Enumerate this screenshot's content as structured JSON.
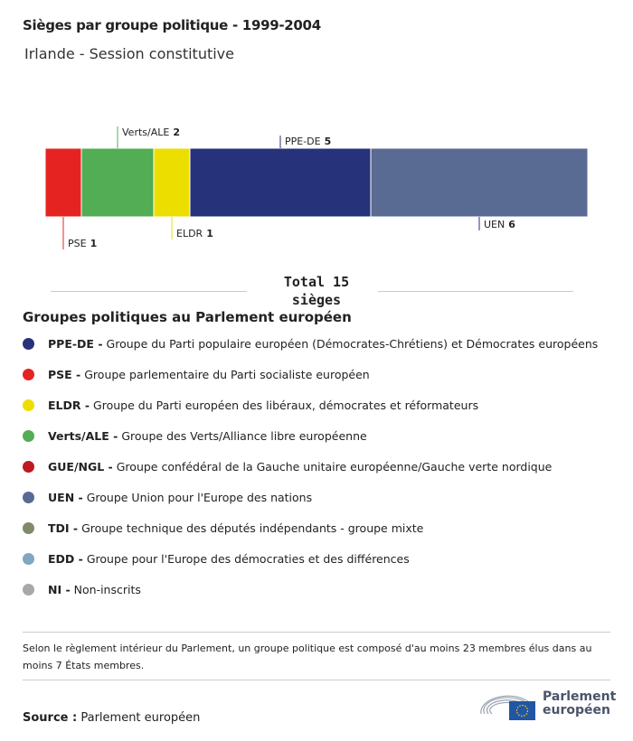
{
  "title": "Sièges par groupe politique - 1999-2004",
  "subtitle": "Irlande - Session constitutive",
  "chart_data": {
    "type": "bar",
    "orientation": "stacked-horizontal",
    "categories": [
      "PSE",
      "Verts/ALE",
      "ELDR",
      "PPE-DE",
      "UEN"
    ],
    "values": [
      1,
      2,
      1,
      5,
      6
    ],
    "colors": [
      "#e52421",
      "#52ad55",
      "#ecdf00",
      "#263279",
      "#596a93"
    ],
    "total_label": "Total 15 sièges"
  },
  "legend_title": "Groupes politiques au Parlement européen",
  "legend": [
    {
      "abbr": "PPE-DE -",
      "name": "Groupe du Parti populaire européen (Démocrates-Chrétiens) et Démocrates européens",
      "color": "#263279"
    },
    {
      "abbr": "PSE -",
      "name": "Groupe parlementaire du Parti socialiste européen",
      "color": "#e52421"
    },
    {
      "abbr": "ELDR -",
      "name": "Groupe du Parti européen des libéraux, démocrates et réformateurs",
      "color": "#ecdf00"
    },
    {
      "abbr": "Verts/ALE -",
      "name": "Groupe des Verts/Alliance libre européenne",
      "color": "#52ad55"
    },
    {
      "abbr": "GUE/NGL -",
      "name": "Groupe confédéral de la Gauche unitaire européenne/Gauche verte nordique",
      "color": "#c0191f"
    },
    {
      "abbr": "UEN -",
      "name": "Groupe Union pour l'Europe des nations",
      "color": "#596a93"
    },
    {
      "abbr": "TDI -",
      "name": "Groupe technique des députés indépendants - groupe mixte",
      "color": "#7f8a6a"
    },
    {
      "abbr": "EDD -",
      "name": "Groupe pour l'Europe des démocraties et des différences",
      "color": "#7fa7c0"
    },
    {
      "abbr": "NI -",
      "name": "Non-inscrits",
      "color": "#a8a8a8"
    }
  ],
  "note": "Selon le règlement intérieur du Parlement, un groupe politique est composé d'au moins 23 membres élus dans au moins 7 États membres.",
  "source_label": "Source :",
  "source": "Parlement européen",
  "logo": "Parlement européen"
}
